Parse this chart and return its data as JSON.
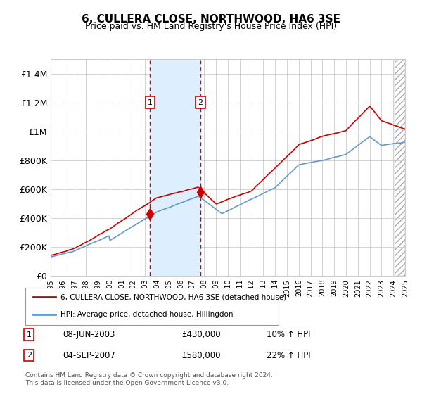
{
  "title": "6, CULLERA CLOSE, NORTHWOOD, HA6 3SE",
  "subtitle": "Price paid vs. HM Land Registry's House Price Index (HPI)",
  "legend_line1": "6, CULLERA CLOSE, NORTHWOOD, HA6 3SE (detached house)",
  "legend_line2": "HPI: Average price, detached house, Hillingdon",
  "sale1_date": "08-JUN-2003",
  "sale1_price": 430000,
  "sale1_hpi": "10% ↑ HPI",
  "sale2_date": "04-SEP-2007",
  "sale2_price": 580000,
  "sale2_hpi": "22% ↑ HPI",
  "footer1": "Contains HM Land Registry data © Crown copyright and database right 2024.",
  "footer2": "This data is licensed under the Open Government Licence v3.0.",
  "red_color": "#cc0000",
  "blue_color": "#6699cc",
  "shade_color": "#ddeeff",
  "background_color": "#ffffff",
  "grid_color": "#cccccc",
  "ylim": [
    0,
    1500000
  ],
  "start_year": 1995,
  "end_year": 2025
}
